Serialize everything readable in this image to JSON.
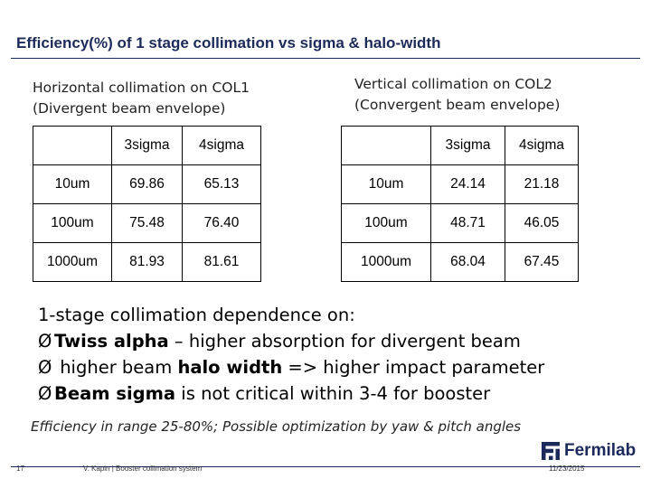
{
  "slide": {
    "title": "Efficiency(%) of 1 stage collimation vs sigma & halo-width"
  },
  "tables": [
    {
      "caption": [
        "Horizontal collimation on COL1",
        "(Divergent beam envelope)"
      ],
      "headers": [
        "",
        "3sigma",
        "4sigma"
      ],
      "rows": [
        {
          "label": "10um",
          "values": [
            "69.86",
            "65.13"
          ]
        },
        {
          "label": "100um",
          "values": [
            "75.48",
            "76.40"
          ]
        },
        {
          "label": "1000um",
          "values": [
            "81.93",
            "81.61"
          ]
        }
      ]
    },
    {
      "caption": [
        "Vertical collimation on COL2",
        "(Convergent beam envelope)"
      ],
      "headers": [
        "",
        "3sigma",
        "4sigma"
      ],
      "rows": [
        {
          "label": "10um",
          "values": [
            "24.14",
            "21.18"
          ]
        },
        {
          "label": "100um",
          "values": [
            "48.71",
            "46.05"
          ]
        },
        {
          "label": "1000um",
          "values": [
            "68.04",
            "67.45"
          ]
        }
      ]
    }
  ],
  "body": {
    "intro": "1-stage collimation dependence on:",
    "bullet_marker": "Ø",
    "bullets": [
      {
        "bold": "Twiss alpha",
        "rest": " – higher absorption for divergent beam"
      },
      {
        "pre": " higher beam ",
        "bold": "halo width",
        "rest": " => higher impact parameter"
      },
      {
        "bold": "Beam sigma",
        "rest": " is not critical within 3-4 for booster"
      }
    ]
  },
  "footer": {
    "note": "Efficiency in range 25-80%; Possible optimization by yaw & pitch angles",
    "slide_number": "17",
    "presenter": "V. Kapin | Booster collimation system",
    "date": "11/23/2015",
    "logo_text": "Fermilab",
    "brand_color": "#1b2a5a"
  }
}
